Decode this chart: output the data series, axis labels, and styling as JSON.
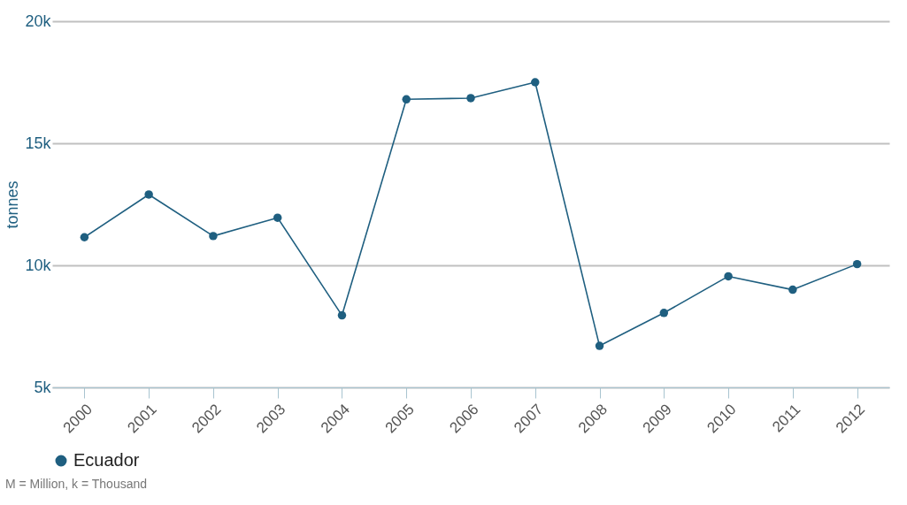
{
  "chart_data": {
    "type": "line",
    "ylabel": "tonnes",
    "categories": [
      "2000",
      "2001",
      "2002",
      "2003",
      "2004",
      "2005",
      "2006",
      "2007",
      "2008",
      "2009",
      "2010",
      "2011",
      "2012"
    ],
    "series": [
      {
        "name": "Ecuador",
        "color": "#1f5f80",
        "values": [
          11150,
          12900,
          11200,
          11950,
          7950,
          16800,
          16850,
          17500,
          6700,
          8050,
          9550,
          9000,
          10050
        ]
      }
    ],
    "ylim": [
      5000,
      20000
    ],
    "yticks": [
      {
        "value": 5000,
        "label": "5k"
      },
      {
        "value": 10000,
        "label": "10k"
      },
      {
        "value": 15000,
        "label": "15k"
      },
      {
        "value": 20000,
        "label": "20k"
      }
    ],
    "grid": "y",
    "legend": "bottom",
    "marker": "circle",
    "line_style": "solid",
    "annotations": [
      "M = Million, k = Thousand"
    ]
  }
}
